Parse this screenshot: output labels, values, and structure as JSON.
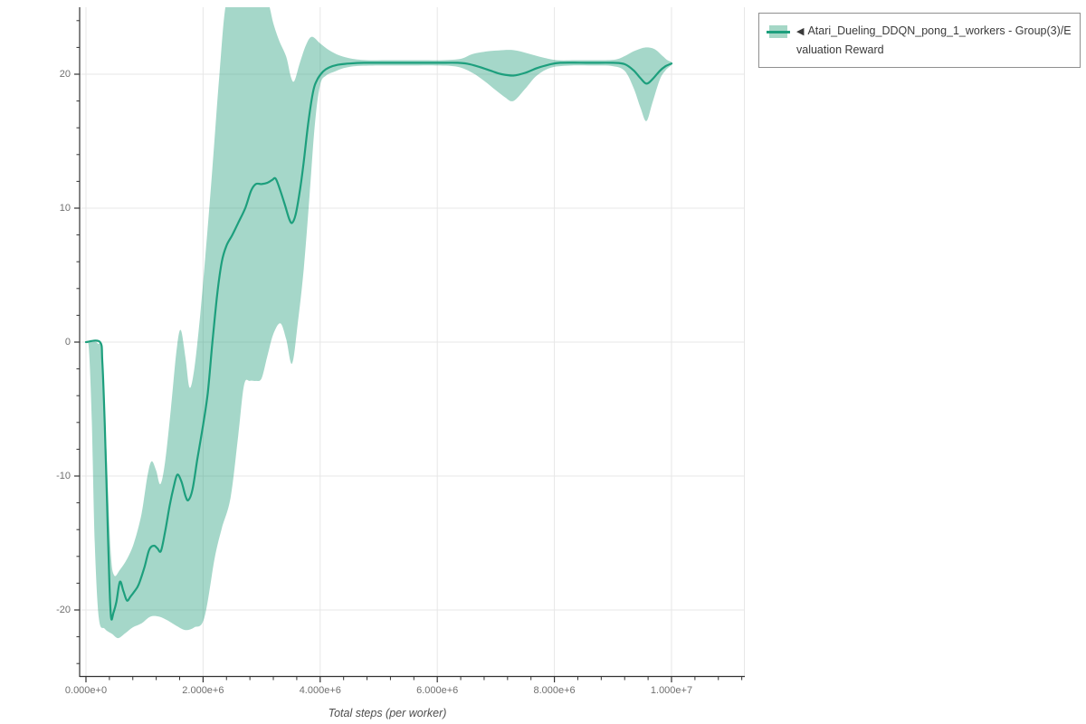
{
  "colors": {
    "line": "#1d9f7d",
    "band": "rgba(30,155,120,0.4)",
    "band_solid": "#a5d7c6",
    "grid": "#e7e7e7",
    "axis": "#333333",
    "tick_label": "#6f6f6f"
  },
  "legend": {
    "collapse_arrow": "◀",
    "label": "Atari_Dueling_DDQN_pong_1_workers - Group(3)/Evaluation Reward"
  },
  "chart_data": {
    "type": "line",
    "title": "",
    "xlabel": "Total steps (per worker)",
    "ylabel": "",
    "legend_position": "outside-top-right",
    "grid": true,
    "xlim": [
      -108000,
      11252000
    ],
    "ylim": [
      -25,
      25
    ],
    "x_minor_step": 400000,
    "y_minor_step": 2,
    "x_ticks": [
      {
        "value": 0,
        "label": "0.000e+0"
      },
      {
        "value": 2000000,
        "label": "2.000e+6"
      },
      {
        "value": 4000000,
        "label": "4.000e+6"
      },
      {
        "value": 6000000,
        "label": "6.000e+6"
      },
      {
        "value": 8000000,
        "label": "8.000e+6"
      },
      {
        "value": 10000000,
        "label": "1.000e+7"
      }
    ],
    "y_ticks": [
      {
        "value": 20,
        "label": "20"
      },
      {
        "value": 10,
        "label": "10"
      },
      {
        "value": 0,
        "label": "0"
      },
      {
        "value": -10,
        "label": "-10"
      },
      {
        "value": -20,
        "label": "-20"
      }
    ],
    "series": [
      {
        "name": "Atari_Dueling_DDQN_pong_1_workers - Group(3)/Evaluation Reward",
        "mean": [
          [
            0,
            0
          ],
          [
            240000,
            0
          ],
          [
            280000,
            -1.5
          ],
          [
            320000,
            -6
          ],
          [
            360000,
            -12
          ],
          [
            400000,
            -18
          ],
          [
            430000,
            -20.6
          ],
          [
            470000,
            -20.2
          ],
          [
            520000,
            -19.4
          ],
          [
            580000,
            -17.9
          ],
          [
            640000,
            -18.6
          ],
          [
            700000,
            -19.3
          ],
          [
            760000,
            -19
          ],
          [
            830000,
            -18.6
          ],
          [
            900000,
            -18.1
          ],
          [
            1000000,
            -16.8
          ],
          [
            1080000,
            -15.5
          ],
          [
            1160000,
            -15.2
          ],
          [
            1220000,
            -15.4
          ],
          [
            1280000,
            -15.6
          ],
          [
            1350000,
            -14.2
          ],
          [
            1430000,
            -12.2
          ],
          [
            1500000,
            -10.8
          ],
          [
            1560000,
            -9.9
          ],
          [
            1630000,
            -10.4
          ],
          [
            1700000,
            -11.5
          ],
          [
            1750000,
            -11.8
          ],
          [
            1820000,
            -11
          ],
          [
            1900000,
            -8.8
          ],
          [
            2000000,
            -6.2
          ],
          [
            2080000,
            -3.8
          ],
          [
            2160000,
            0
          ],
          [
            2240000,
            3.5
          ],
          [
            2320000,
            6
          ],
          [
            2400000,
            7.2
          ],
          [
            2500000,
            8
          ],
          [
            2600000,
            8.9
          ],
          [
            2720000,
            10
          ],
          [
            2820000,
            11.3
          ],
          [
            2900000,
            11.8
          ],
          [
            3000000,
            11.8
          ],
          [
            3100000,
            11.9
          ],
          [
            3180000,
            12.1
          ],
          [
            3240000,
            12.2
          ],
          [
            3320000,
            11.3
          ],
          [
            3400000,
            10.2
          ],
          [
            3470000,
            9.2
          ],
          [
            3520000,
            8.9
          ],
          [
            3580000,
            9.5
          ],
          [
            3650000,
            11.2
          ],
          [
            3720000,
            13.5
          ],
          [
            3800000,
            16.5
          ],
          [
            3880000,
            18.7
          ],
          [
            3950000,
            19.6
          ],
          [
            4050000,
            20.2
          ],
          [
            4150000,
            20.5
          ],
          [
            4300000,
            20.7
          ],
          [
            4500000,
            20.8
          ],
          [
            4750000,
            20.85
          ],
          [
            5000000,
            20.85
          ],
          [
            5500000,
            20.85
          ],
          [
            6000000,
            20.85
          ],
          [
            6350000,
            20.85
          ],
          [
            6550000,
            20.75
          ],
          [
            6750000,
            20.5
          ],
          [
            6950000,
            20.2
          ],
          [
            7100000,
            20
          ],
          [
            7300000,
            19.9
          ],
          [
            7500000,
            20.1
          ],
          [
            7700000,
            20.45
          ],
          [
            7900000,
            20.7
          ],
          [
            8100000,
            20.85
          ],
          [
            8600000,
            20.85
          ],
          [
            9000000,
            20.85
          ],
          [
            9200000,
            20.75
          ],
          [
            9350000,
            20.3
          ],
          [
            9470000,
            19.7
          ],
          [
            9570000,
            19.3
          ],
          [
            9670000,
            19.6
          ],
          [
            9800000,
            20.25
          ],
          [
            9900000,
            20.6
          ],
          [
            10000000,
            20.8
          ]
        ],
        "band_upper": [
          [
            0,
            0
          ],
          [
            100000,
            0
          ],
          [
            200000,
            -0.1
          ],
          [
            280000,
            -1
          ],
          [
            350000,
            -8
          ],
          [
            420000,
            -15.5
          ],
          [
            480000,
            -17.4
          ],
          [
            580000,
            -17
          ],
          [
            700000,
            -16.2
          ],
          [
            820000,
            -15
          ],
          [
            950000,
            -12.8
          ],
          [
            1050000,
            -10
          ],
          [
            1120000,
            -8.9
          ],
          [
            1200000,
            -9.6
          ],
          [
            1270000,
            -10.6
          ],
          [
            1350000,
            -9
          ],
          [
            1450000,
            -5
          ],
          [
            1550000,
            -0.5
          ],
          [
            1620000,
            0.9
          ],
          [
            1700000,
            -1.2
          ],
          [
            1770000,
            -3.4
          ],
          [
            1850000,
            -2
          ],
          [
            1950000,
            2
          ],
          [
            2050000,
            7
          ],
          [
            2160000,
            13
          ],
          [
            2280000,
            20
          ],
          [
            2400000,
            25.5
          ],
          [
            2600000,
            27
          ],
          [
            2900000,
            27
          ],
          [
            3100000,
            25.5
          ],
          [
            3200000,
            23.8
          ],
          [
            3300000,
            22.5
          ],
          [
            3420000,
            21.3
          ],
          [
            3500000,
            19.8
          ],
          [
            3560000,
            19.5
          ],
          [
            3650000,
            20.8
          ],
          [
            3760000,
            22.2
          ],
          [
            3860000,
            22.8
          ],
          [
            4000000,
            22.3
          ],
          [
            4150000,
            21.8
          ],
          [
            4330000,
            21.4
          ],
          [
            4550000,
            21.15
          ],
          [
            4800000,
            21.05
          ],
          [
            5200000,
            21.05
          ],
          [
            5700000,
            21.05
          ],
          [
            6100000,
            21.05
          ],
          [
            6400000,
            21.15
          ],
          [
            6600000,
            21.5
          ],
          [
            6850000,
            21.7
          ],
          [
            7050000,
            21.78
          ],
          [
            7300000,
            21.8
          ],
          [
            7550000,
            21.55
          ],
          [
            7800000,
            21.25
          ],
          [
            8050000,
            21.05
          ],
          [
            8400000,
            21.05
          ],
          [
            8800000,
            21.05
          ],
          [
            9050000,
            21.1
          ],
          [
            9200000,
            21.35
          ],
          [
            9350000,
            21.7
          ],
          [
            9500000,
            21.95
          ],
          [
            9600000,
            22
          ],
          [
            9720000,
            21.85
          ],
          [
            9850000,
            21.35
          ],
          [
            9930000,
            21.05
          ],
          [
            10000000,
            20.9
          ]
        ],
        "band_lower": [
          [
            0,
            0
          ],
          [
            50000,
            -0.5
          ],
          [
            100000,
            -6
          ],
          [
            150000,
            -15
          ],
          [
            220000,
            -20.6
          ],
          [
            320000,
            -21.4
          ],
          [
            450000,
            -21.8
          ],
          [
            550000,
            -22.1
          ],
          [
            680000,
            -21.7
          ],
          [
            800000,
            -21.3
          ],
          [
            950000,
            -21
          ],
          [
            1100000,
            -20.5
          ],
          [
            1250000,
            -20.5
          ],
          [
            1400000,
            -20.8
          ],
          [
            1550000,
            -21.2
          ],
          [
            1700000,
            -21.5
          ],
          [
            1850000,
            -21.3
          ],
          [
            2020000,
            -20.6
          ],
          [
            2200000,
            -16.1
          ],
          [
            2320000,
            -13.9
          ],
          [
            2470000,
            -11.6
          ],
          [
            2600000,
            -7
          ],
          [
            2700000,
            -3.2
          ],
          [
            2800000,
            -2.9
          ],
          [
            2900000,
            -2.9
          ],
          [
            3000000,
            -2.7
          ],
          [
            3100000,
            -1
          ],
          [
            3200000,
            0.6
          ],
          [
            3320000,
            1.4
          ],
          [
            3420000,
            0.2
          ],
          [
            3520000,
            -1.6
          ],
          [
            3620000,
            1.5
          ],
          [
            3720000,
            5.5
          ],
          [
            3820000,
            11
          ],
          [
            3910000,
            16.3
          ],
          [
            4000000,
            19.2
          ],
          [
            4100000,
            19.9
          ],
          [
            4250000,
            20.2
          ],
          [
            4400000,
            20.45
          ],
          [
            4600000,
            20.6
          ],
          [
            5000000,
            20.65
          ],
          [
            5500000,
            20.65
          ],
          [
            6000000,
            20.65
          ],
          [
            6350000,
            20.55
          ],
          [
            6600000,
            20.1
          ],
          [
            6800000,
            19.5
          ],
          [
            7000000,
            18.8
          ],
          [
            7150000,
            18.3
          ],
          [
            7300000,
            18
          ],
          [
            7500000,
            18.9
          ],
          [
            7700000,
            19.9
          ],
          [
            7950000,
            20.5
          ],
          [
            8300000,
            20.65
          ],
          [
            8700000,
            20.65
          ],
          [
            9000000,
            20.6
          ],
          [
            9200000,
            20.25
          ],
          [
            9350000,
            19
          ],
          [
            9470000,
            17.5
          ],
          [
            9570000,
            16.5
          ],
          [
            9670000,
            17.8
          ],
          [
            9800000,
            19.6
          ],
          [
            9900000,
            20.3
          ],
          [
            10000000,
            20.7
          ]
        ]
      }
    ]
  }
}
